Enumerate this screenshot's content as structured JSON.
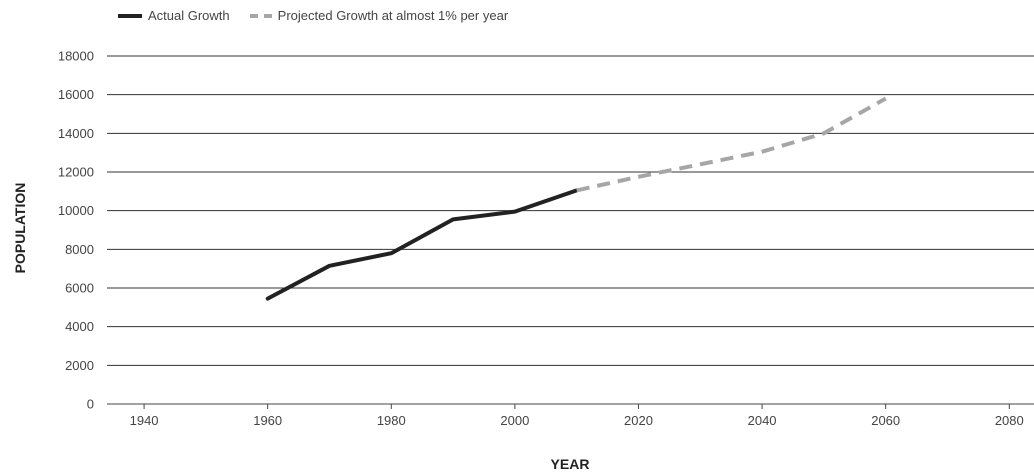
{
  "chart_data": {
    "type": "line",
    "title": "",
    "xlabel": "YEAR",
    "ylabel": "POPULATION",
    "xlim": [
      1934,
      2084
    ],
    "ylim": [
      0,
      18000
    ],
    "x_ticks": [
      1940,
      1960,
      1980,
      2000,
      2020,
      2040,
      2060,
      2080
    ],
    "y_ticks": [
      0,
      2000,
      4000,
      6000,
      8000,
      10000,
      12000,
      14000,
      16000,
      18000
    ],
    "grid": "horizontal",
    "legend_position": "top-left",
    "series": [
      {
        "name": "Actual Growth",
        "style": "solid",
        "color": "#222222",
        "x": [
          1960,
          1970,
          1980,
          1990,
          2000,
          2010
        ],
        "y": [
          5450,
          7150,
          7800,
          9550,
          9950,
          11050
        ]
      },
      {
        "name": "Projected Growth at almost 1% per year",
        "style": "dashed",
        "color": "#a6a6a6",
        "x": [
          2010,
          2020,
          2030,
          2040,
          2050,
          2060
        ],
        "y": [
          11050,
          11750,
          12400,
          13050,
          14000,
          15800
        ]
      }
    ]
  }
}
